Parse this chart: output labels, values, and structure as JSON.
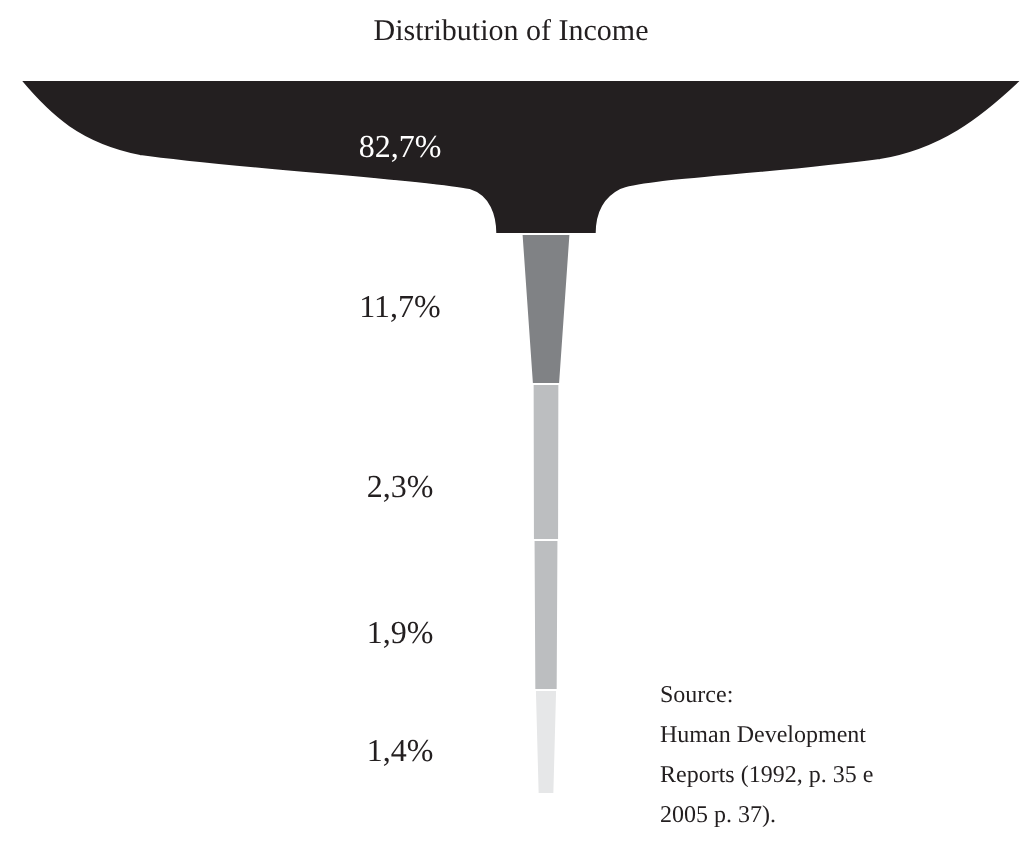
{
  "chart_data": {
    "type": "other",
    "title": "Distribution of Income",
    "categories": [
      null,
      null,
      null,
      null,
      null
    ],
    "values": [
      82.7,
      11.7,
      2.3,
      1.9,
      1.4
    ],
    "value_labels": [
      "82,7%",
      "11,7%",
      "2,3%",
      "1,9%",
      "1,4%"
    ],
    "colors": [
      "#231f20",
      "#808285",
      "#bcbec0",
      "#bcbec0",
      "#e6e7e8"
    ],
    "annotations": [
      "Source:\nHuman Development\nReports (1992, p. 35 e\n2005 p. 37)."
    ]
  }
}
